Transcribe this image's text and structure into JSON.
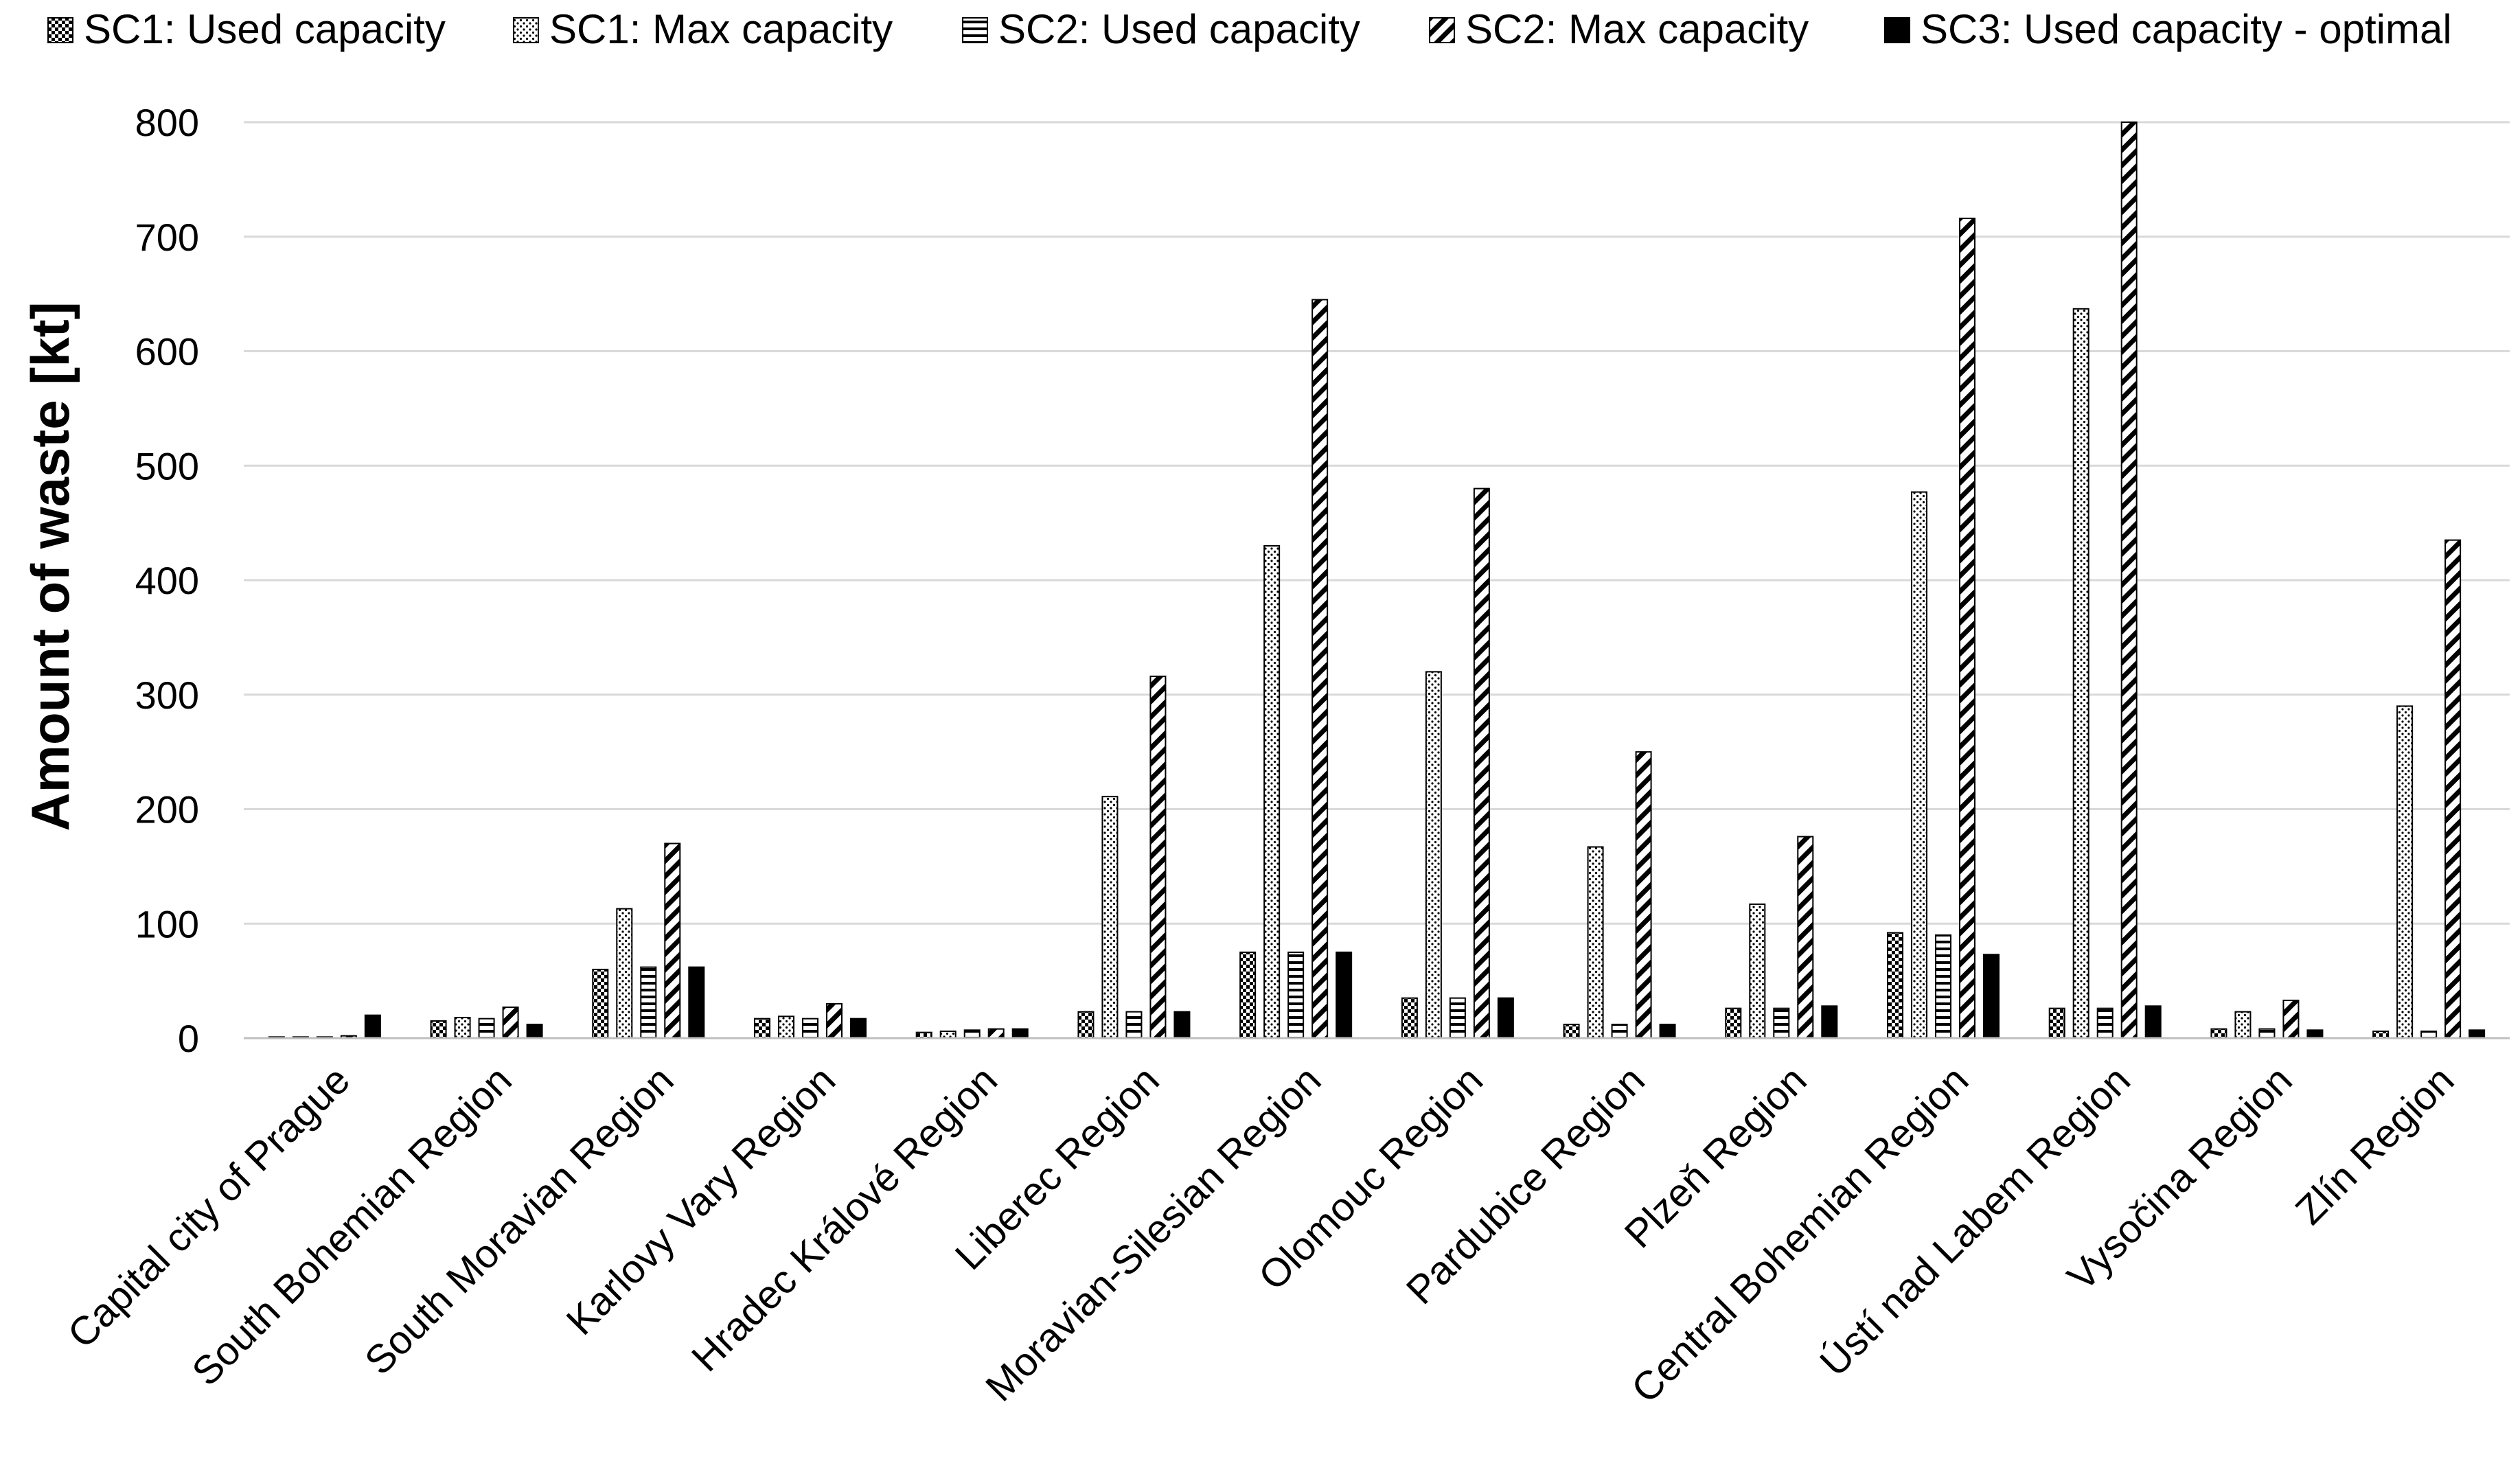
{
  "chart_data": {
    "type": "bar",
    "title": "",
    "xlabel": "",
    "ylabel": "Amount of waste [kt]",
    "ylim": [
      0,
      800
    ],
    "yticks": [
      0,
      100,
      200,
      300,
      400,
      500,
      600,
      700,
      800
    ],
    "grid": true,
    "legend_position": "top",
    "categories": [
      "Capital city of Prague",
      "South Bohemian Region",
      "South Moravian Region",
      "Karlovy Vary Region",
      "Hradec Králové Region",
      "Liberec Region",
      "Moravian-Silesian Region",
      "Olomouc Region",
      "Pardubice Region",
      "Plzeň Region",
      "Central Bohemian Region",
      "Ústí nad Labem Region",
      "Vysočina Region",
      "Zlín Region"
    ],
    "series": [
      {
        "name": "SC1: Used capacity",
        "pattern": "checker",
        "values": [
          1,
          15,
          60,
          17,
          5,
          23,
          75,
          35,
          12,
          26,
          92,
          26,
          8,
          6
        ]
      },
      {
        "name": "SC1: Max capacity",
        "pattern": "dots",
        "values": [
          1,
          18,
          113,
          19,
          6,
          211,
          430,
          320,
          167,
          117,
          477,
          637,
          23,
          290
        ]
      },
      {
        "name": "SC2: Used capacity",
        "pattern": "hlines",
        "values": [
          1,
          17,
          62,
          17,
          7,
          23,
          75,
          35,
          12,
          26,
          90,
          26,
          8,
          6
        ]
      },
      {
        "name": "SC2: Max capacity",
        "pattern": "diag",
        "values": [
          2,
          27,
          170,
          30,
          8,
          316,
          645,
          480,
          250,
          176,
          716,
          800,
          33,
          435
        ]
      },
      {
        "name": "SC3: Used capacity - optimal",
        "pattern": "solid",
        "values": [
          20,
          12,
          62,
          17,
          8,
          23,
          75,
          35,
          12,
          28,
          73,
          28,
          7,
          7
        ]
      }
    ]
  }
}
